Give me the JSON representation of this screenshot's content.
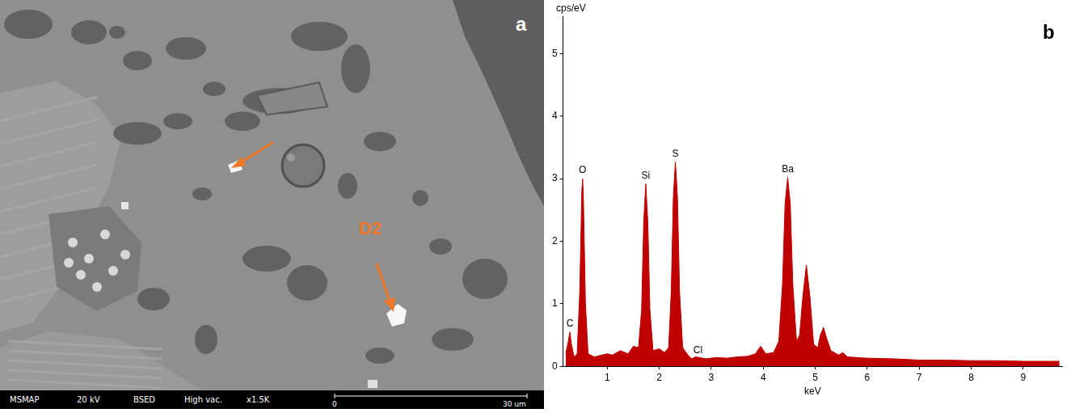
{
  "image_panel": {
    "panel": "a",
    "annotation": "D2",
    "status_bar": [
      "MSMAP",
      "20 kV",
      "BSED",
      "High vac.",
      "x1.5K"
    ],
    "scale_bar": {
      "start": "0",
      "end": "30 um"
    }
  },
  "chart_data": {
    "type": "area",
    "panel": "b",
    "x_label": "keV",
    "y_label": "cps/eV",
    "color": "#c00000",
    "grid": false,
    "x": [
      0.2,
      0.25,
      0.28,
      0.31,
      0.36,
      0.42,
      0.47,
      0.51,
      0.525,
      0.54,
      0.58,
      0.63,
      0.75,
      0.9,
      1.0,
      1.1,
      1.25,
      1.4,
      1.5,
      1.6,
      1.66,
      1.7,
      1.74,
      1.78,
      1.82,
      1.88,
      2.0,
      2.1,
      2.18,
      2.23,
      2.27,
      2.31,
      2.35,
      2.39,
      2.45,
      2.55,
      2.62,
      2.7,
      2.9,
      3.1,
      3.3,
      3.5,
      3.7,
      3.85,
      3.95,
      4.05,
      4.2,
      4.3,
      4.37,
      4.42,
      4.47,
      4.52,
      4.57,
      4.64,
      4.7,
      4.76,
      4.83,
      4.9,
      4.97,
      5.05,
      5.1,
      5.16,
      5.22,
      5.3,
      5.45,
      5.53,
      5.62,
      5.8,
      6.0,
      6.5,
      7.0,
      7.5,
      8.0,
      8.5,
      9.0,
      9.5,
      9.7
    ],
    "values": [
      0.2,
      0.4,
      0.55,
      0.35,
      0.15,
      0.2,
      1.2,
      2.8,
      3.0,
      2.7,
      1.0,
      0.2,
      0.15,
      0.18,
      0.2,
      0.18,
      0.25,
      0.2,
      0.32,
      0.3,
      0.9,
      2.3,
      2.92,
      2.3,
      0.9,
      0.25,
      0.28,
      0.22,
      0.3,
      1.2,
      2.7,
      3.27,
      2.7,
      1.2,
      0.3,
      0.18,
      0.12,
      0.15,
      0.12,
      0.14,
      0.13,
      0.15,
      0.16,
      0.2,
      0.32,
      0.2,
      0.22,
      0.4,
      1.3,
      2.6,
      3.02,
      2.6,
      1.3,
      0.4,
      0.5,
      1.1,
      1.62,
      1.1,
      0.35,
      0.3,
      0.5,
      0.62,
      0.45,
      0.25,
      0.18,
      0.22,
      0.15,
      0.14,
      0.13,
      0.12,
      0.1,
      0.1,
      0.09,
      0.09,
      0.08,
      0.08,
      0.08
    ],
    "xlim": [
      0.15,
      9.75
    ],
    "ylim": [
      0,
      5.6
    ],
    "xticks": [
      1,
      2,
      3,
      4,
      5,
      6,
      7,
      8,
      9
    ],
    "yticks": [
      0,
      1,
      2,
      3,
      4,
      5
    ],
    "annotations": [
      {
        "text": "C",
        "x": 0.28
      },
      {
        "text": "O",
        "x": 0.525
      },
      {
        "text": "Si",
        "x": 1.74
      },
      {
        "text": "S",
        "x": 2.31
      },
      {
        "text": "Cl",
        "x": 2.62
      },
      {
        "text": "Ba",
        "x": 4.47
      }
    ]
  }
}
